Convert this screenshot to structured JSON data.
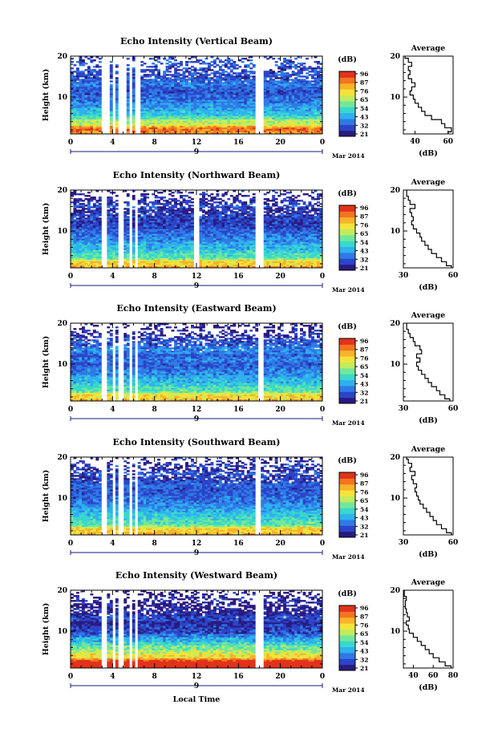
{
  "figure": {
    "date_label": "Mar 2014",
    "date_tick": "9",
    "xlabel_bottom": "Local Time"
  },
  "colorbar": {
    "unit": "(dB)",
    "ticks": [
      "96",
      "87",
      "76",
      "65",
      "54",
      "43",
      "32",
      "21"
    ],
    "colors": [
      "#2a1a80",
      "#2b45c8",
      "#2f7ae6",
      "#2fb1ef",
      "#38d8cc",
      "#72e79a",
      "#c2ec5d",
      "#f4e33b",
      "#f9b32a",
      "#f47421",
      "#e2321b"
    ]
  },
  "chart_data": [
    {
      "type": "heatmap",
      "title": "Echo Intensity (Vertical Beam)",
      "xlabel": "",
      "ylabel": "Height (km)",
      "xlim": [
        0,
        24
      ],
      "ylim": [
        1,
        20
      ],
      "xticks": [
        "0",
        "4",
        "8",
        "12",
        "16",
        "20",
        "0"
      ],
      "yticks": [
        "10",
        "20"
      ],
      "zlim": [
        21,
        96
      ],
      "zunit": "(dB)",
      "data_gaps_hours": [
        [
          3.0,
          3.6
        ],
        [
          3.9,
          4.2
        ],
        [
          4.6,
          5.2
        ],
        [
          5.5,
          5.8
        ],
        [
          6.2,
          6.6
        ],
        [
          17.7,
          18.3
        ]
      ],
      "profile": {
        "title": "Average",
        "xlabel": "(dB)",
        "ylabel": "",
        "xlim": [
          33,
          63
        ],
        "xticks": [
          "40",
          "60"
        ],
        "yticks": [
          "10",
          "20"
        ],
        "ylim": [
          1,
          20
        ],
        "height_km": [
          1,
          2,
          3,
          4,
          5,
          6,
          7,
          8,
          9,
          10,
          11,
          12,
          13,
          14,
          15,
          16,
          17,
          18,
          19,
          20
        ],
        "mean_db": [
          60,
          62,
          58,
          56,
          50,
          46,
          44,
          42,
          40,
          39,
          37,
          38,
          40,
          38,
          36,
          37,
          36,
          38,
          36,
          34
        ]
      }
    },
    {
      "type": "heatmap",
      "title": "Echo Intensity (Northward Beam)",
      "xlabel": "",
      "ylabel": "Height (km)",
      "xlim": [
        0,
        24
      ],
      "ylim": [
        1,
        20
      ],
      "xticks": [
        "0",
        "4",
        "8",
        "12",
        "16",
        "20",
        "0"
      ],
      "yticks": [
        "10",
        "20"
      ],
      "zlim": [
        21,
        96
      ],
      "zunit": "(dB)",
      "data_gaps_hours": [
        [
          3.0,
          3.5
        ],
        [
          3.9,
          4.1
        ],
        [
          4.6,
          5.1
        ],
        [
          5.5,
          5.8
        ],
        [
          6.2,
          6.5
        ],
        [
          11.8,
          12.3
        ],
        [
          17.7,
          18.3
        ]
      ],
      "profile": {
        "title": "Average",
        "xlabel": "(dB)",
        "ylabel": "",
        "xlim": [
          30,
          60
        ],
        "xticks": [
          "30",
          "60"
        ],
        "yticks": [
          "10",
          "20"
        ],
        "ylim": [
          1,
          20
        ],
        "height_km": [
          1,
          2,
          3,
          4,
          5,
          6,
          7,
          8,
          9,
          10,
          11,
          12,
          13,
          14,
          15,
          16,
          17,
          18,
          19,
          20
        ],
        "mean_db": [
          59,
          56,
          53,
          50,
          47,
          45,
          43,
          41,
          40,
          38,
          36,
          35,
          36,
          35,
          34,
          37,
          34,
          33,
          32,
          32
        ]
      }
    },
    {
      "type": "heatmap",
      "title": "Echo Intensity (Eastward Beam)",
      "xlabel": "",
      "ylabel": "Height (km)",
      "xlim": [
        0,
        24
      ],
      "ylim": [
        1,
        20
      ],
      "xticks": [
        "0",
        "4",
        "8",
        "12",
        "16",
        "20",
        "0"
      ],
      "yticks": [
        "10",
        "20"
      ],
      "zlim": [
        21,
        96
      ],
      "zunit": "(dB)",
      "data_gaps_hours": [
        [
          3.0,
          3.5
        ],
        [
          3.9,
          4.2
        ],
        [
          4.6,
          5.1
        ],
        [
          5.5,
          5.8
        ],
        [
          6.2,
          6.5
        ],
        [
          17.8,
          18.3
        ]
      ],
      "profile": {
        "title": "Average",
        "xlabel": "(dB)",
        "ylabel": "",
        "xlim": [
          30,
          60
        ],
        "xticks": [
          "30",
          "60"
        ],
        "yticks": [
          "10",
          "20"
        ],
        "ylim": [
          1,
          20
        ],
        "height_km": [
          1,
          2,
          3,
          4,
          5,
          6,
          7,
          8,
          9,
          10,
          11,
          12,
          13,
          14,
          15,
          16,
          17,
          18,
          19,
          20
        ],
        "mean_db": [
          58,
          55,
          52,
          50,
          47,
          45,
          43,
          41,
          39,
          38,
          40,
          38,
          41,
          40,
          37,
          36,
          34,
          33,
          32,
          32
        ]
      }
    },
    {
      "type": "heatmap",
      "title": "Echo Intensity (Southward Beam)",
      "xlabel": "",
      "ylabel": "Height (km)",
      "xlim": [
        0,
        24
      ],
      "ylim": [
        1,
        20
      ],
      "xticks": [
        "0",
        "4",
        "8",
        "12",
        "16",
        "20",
        "0"
      ],
      "yticks": [
        "10",
        "20"
      ],
      "zlim": [
        21,
        96
      ],
      "zunit": "(dB)",
      "data_gaps_hours": [
        [
          3.0,
          3.5
        ],
        [
          3.9,
          4.2
        ],
        [
          4.6,
          5.1
        ],
        [
          5.5,
          5.8
        ],
        [
          6.2,
          6.5
        ],
        [
          17.7,
          18.2
        ]
      ],
      "profile": {
        "title": "Average",
        "xlabel": "(dB)",
        "ylabel": "",
        "xlim": [
          30,
          60
        ],
        "xticks": [
          "30",
          "60"
        ],
        "yticks": [
          "10",
          "20"
        ],
        "ylim": [
          1,
          20
        ],
        "height_km": [
          1,
          2,
          3,
          4,
          5,
          6,
          7,
          8,
          9,
          10,
          11,
          12,
          13,
          14,
          15,
          16,
          17,
          18,
          19,
          20
        ],
        "mean_db": [
          59,
          56,
          53,
          50,
          48,
          46,
          44,
          42,
          40,
          39,
          38,
          37,
          38,
          36,
          35,
          37,
          34,
          35,
          33,
          32
        ]
      }
    },
    {
      "type": "heatmap",
      "title": "Echo Intensity (Westward Beam)",
      "xlabel": "Local Time",
      "ylabel": "Height (km)",
      "xlim": [
        0,
        24
      ],
      "ylim": [
        1,
        20
      ],
      "xticks": [
        "0",
        "4",
        "8",
        "12",
        "16",
        "20",
        "0"
      ],
      "yticks": [
        "10",
        "20"
      ],
      "zlim": [
        21,
        96
      ],
      "zunit": "(dB)",
      "data_gaps_hours": [
        [
          3.0,
          3.5
        ],
        [
          3.9,
          4.2
        ],
        [
          4.6,
          5.1
        ],
        [
          5.5,
          5.8
        ],
        [
          6.2,
          6.5
        ],
        [
          17.7,
          18.3
        ]
      ],
      "profile": {
        "title": "Average",
        "xlabel": "(dB)",
        "ylabel": "",
        "xlim": [
          30,
          80
        ],
        "xticks": [
          "40",
          "60",
          "80"
        ],
        "yticks": [
          "10",
          "20"
        ],
        "ylim": [
          1,
          20
        ],
        "height_km": [
          1,
          2,
          3,
          4,
          5,
          6,
          7,
          8,
          9,
          10,
          11,
          12,
          13,
          14,
          15,
          16,
          17,
          18,
          19,
          20
        ],
        "mean_db": [
          78,
          72,
          66,
          60,
          56,
          52,
          48,
          44,
          40,
          36,
          35,
          33,
          36,
          34,
          33,
          32,
          32,
          33,
          31,
          31
        ]
      }
    }
  ]
}
